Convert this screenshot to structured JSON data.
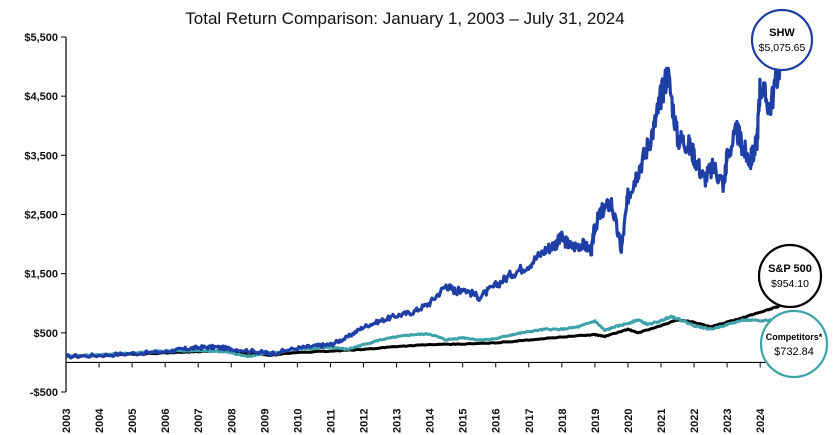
{
  "chart_data": {
    "type": "line",
    "title": "Total Return Comparison: January 1, 2003 – July 31, 2024",
    "xlabel": "",
    "ylabel": "",
    "ylim": [
      -500,
      5500
    ],
    "xlim": [
      2003,
      2024.6
    ],
    "y_ticks": [
      -500,
      500,
      1500,
      2500,
      3500,
      4500,
      5500
    ],
    "y_tick_labels": [
      "-$500",
      "$500",
      "$1,500",
      "$2,500",
      "$3,500",
      "$4,500",
      "$5,500"
    ],
    "x_ticks": [
      2003,
      2004,
      2005,
      2006,
      2007,
      2008,
      2009,
      2010,
      2011,
      2012,
      2013,
      2014,
      2015,
      2016,
      2017,
      2018,
      2019,
      2020,
      2021,
      2022,
      2023,
      2024
    ],
    "x_tick_labels": [
      "2003",
      "2004",
      "2005",
      "2006",
      "2007",
      "2008",
      "2009",
      "2010",
      "2011",
      "2012",
      "2013",
      "2014",
      "2015",
      "2016",
      "2017",
      "2018",
      "2019",
      "2020",
      "2021",
      "2022",
      "2023",
      "2024"
    ],
    "grid": false,
    "series": [
      {
        "name": "SHW",
        "color": "#1f3fa6",
        "end_value": "$5,075.65",
        "x": [
          2003,
          2004,
          2005,
          2006,
          2006.5,
          2007,
          2007.5,
          2008,
          2008.8,
          2009.2,
          2010,
          2010.6,
          2011,
          2011.5,
          2012,
          2012.5,
          2013,
          2013.5,
          2014,
          2014.5,
          2014.8,
          2015,
          2015.5,
          2016,
          2016.5,
          2017,
          2017.5,
          2017.8,
          2018,
          2018.3,
          2018.6,
          2018.9,
          2019,
          2019.2,
          2019.5,
          2019.8,
          2020,
          2020.2,
          2020.5,
          2020.8,
          2021,
          2021.2,
          2021.5,
          2021.8,
          2022,
          2022.3,
          2022.6,
          2022.9,
          2023,
          2023.3,
          2023.5,
          2023.7,
          2023.9,
          2024,
          2024.3,
          2024.6
        ],
        "values": [
          100,
          120,
          150,
          180,
          220,
          250,
          260,
          230,
          180,
          150,
          240,
          280,
          300,
          420,
          600,
          700,
          790,
          850,
          1000,
          1300,
          1200,
          1250,
          1100,
          1300,
          1500,
          1650,
          1900,
          2000,
          2100,
          1950,
          2000,
          1900,
          2300,
          2550,
          2700,
          1900,
          2800,
          3100,
          3500,
          4000,
          4500,
          4900,
          3800,
          3700,
          3500,
          3100,
          3300,
          3000,
          3500,
          3900,
          3600,
          3400,
          3700,
          4700,
          4300,
          5075.65
        ]
      },
      {
        "name": "S&P 500",
        "color": "#000000",
        "end_value": "$954.10",
        "x": [
          2003,
          2004,
          2005,
          2006,
          2007,
          2007.8,
          2008.5,
          2009.2,
          2010,
          2011,
          2012,
          2013,
          2014,
          2015,
          2016,
          2017,
          2018,
          2019,
          2019.3,
          2020,
          2020.3,
          2021,
          2021.5,
          2022,
          2022.5,
          2023,
          2023.5,
          2024,
          2024.6
        ],
        "values": [
          100,
          120,
          140,
          160,
          185,
          190,
          150,
          120,
          170,
          190,
          220,
          270,
          300,
          310,
          330,
          380,
          430,
          470,
          440,
          560,
          500,
          620,
          720,
          680,
          600,
          680,
          760,
          850,
          954.1
        ]
      },
      {
        "name": "Competitors*",
        "color": "#3ea3a8",
        "end_value": "$732.84",
        "x": [
          2003,
          2004,
          2005,
          2006,
          2007,
          2007.8,
          2008.5,
          2009,
          2009.5,
          2010,
          2010.5,
          2011,
          2011.5,
          2012,
          2012.5,
          2013,
          2013.5,
          2014,
          2014.5,
          2015,
          2015.5,
          2016,
          2016.5,
          2017,
          2017.5,
          2018,
          2018.5,
          2019,
          2019.3,
          2019.6,
          2020,
          2020.3,
          2020.6,
          2021,
          2021.3,
          2021.6,
          2022,
          2022.5,
          2023,
          2023.5,
          2024,
          2024.6
        ],
        "values": [
          100,
          130,
          160,
          190,
          200,
          180,
          100,
          150,
          180,
          240,
          230,
          260,
          220,
          300,
          380,
          430,
          470,
          480,
          380,
          420,
          380,
          400,
          470,
          520,
          560,
          560,
          600,
          700,
          540,
          600,
          660,
          720,
          640,
          700,
          780,
          720,
          620,
          560,
          640,
          720,
          700,
          732.84
        ]
      }
    ],
    "annotations": [
      {
        "series": "SHW",
        "label": "SHW",
        "value": "$5,075.65"
      },
      {
        "series": "S&P 500",
        "label": "S&P 500",
        "value": "$954.10"
      },
      {
        "series": "Competitors*",
        "label": "Competitors*",
        "value": "$732.84"
      }
    ]
  }
}
